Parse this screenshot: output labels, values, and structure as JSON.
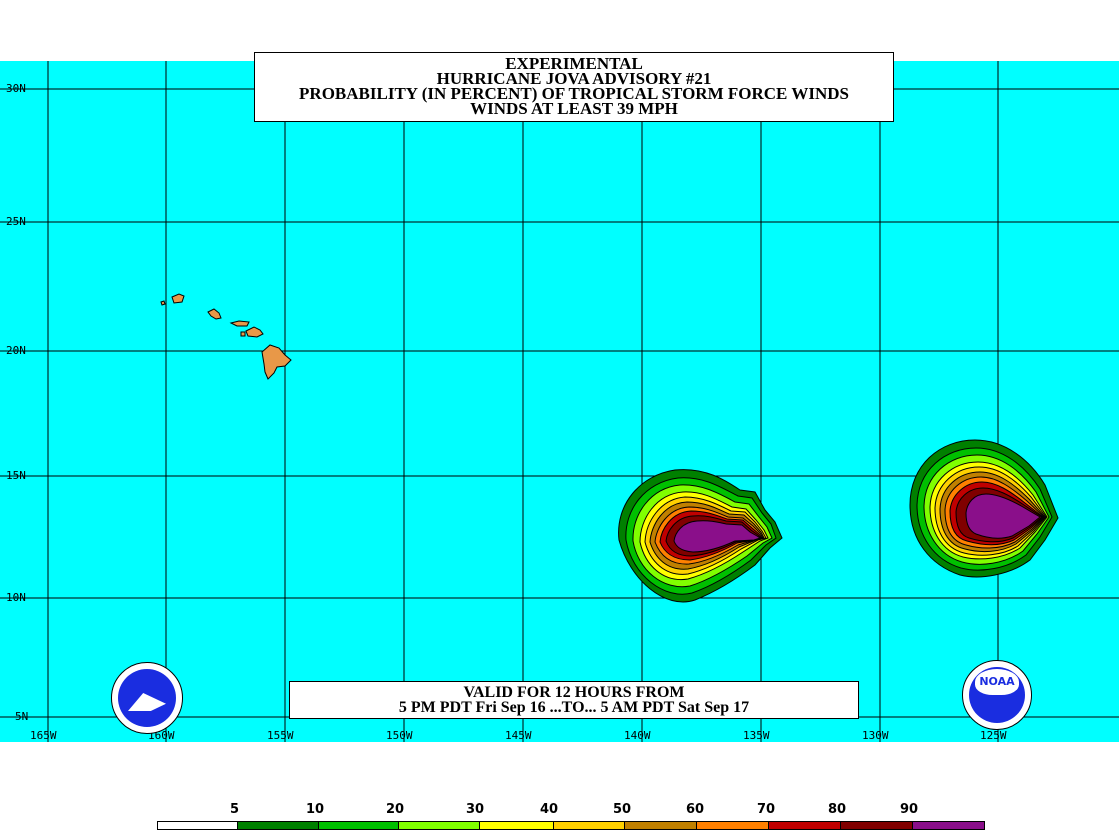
{
  "title": {
    "line1": "EXPERIMENTAL",
    "line2": "HURRICANE JOVA ADVISORY #21",
    "line3": "PROBABILITY (IN PERCENT) OF TROPICAL STORM FORCE WINDS",
    "line4": "WINDS AT LEAST 39 MPH"
  },
  "valid": {
    "line1": "VALID FOR 12 HOURS FROM",
    "line2": "5 PM PDT Fri Sep 16 ...TO... 5 AM PDT Sat Sep 17"
  },
  "lat_labels": [
    "30N",
    "25N",
    "20N",
    "15N",
    "10N",
    "5N"
  ],
  "lon_labels": [
    "165W",
    "160W",
    "155W",
    "150W",
    "145W",
    "140W",
    "135W",
    "130W",
    "125W"
  ],
  "legend": {
    "numbers": [
      "5",
      "10",
      "20",
      "30",
      "40",
      "50",
      "60",
      "70",
      "80",
      "90"
    ],
    "colors": [
      "#ffffff",
      "#008000",
      "#00c000",
      "#80ff00",
      "#ffff00",
      "#ffd000",
      "#c08000",
      "#ff8000",
      "#c00000",
      "#800000",
      "#8a0f8a"
    ]
  },
  "map": {
    "ocean_color": "#00ffff",
    "land_color": "#e89848",
    "islands": [
      "Kauai",
      "Oahu",
      "Molokai",
      "Maui",
      "Hawaii"
    ]
  },
  "storms": [
    {
      "name": "storm-center-west",
      "lon": -137.5,
      "lat": 12.5,
      "peak_percent": 90
    },
    {
      "name": "storm-center-east",
      "lon": -125.0,
      "lat": 13.2,
      "peak_percent": 90
    }
  ],
  "logos": {
    "left": "nws-logo-icon",
    "right": "noaa-logo-icon",
    "noaa_text": "NOAA"
  }
}
